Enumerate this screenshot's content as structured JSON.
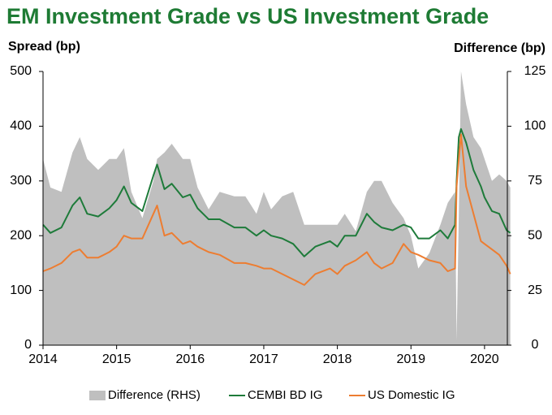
{
  "chart_data": {
    "type": "line",
    "title": "EM Investment Grade vs US Investment Grade",
    "ylabel": "Spread (bp)",
    "y2label": "Difference (bp)",
    "x": [
      2014.0,
      2014.1,
      2014.25,
      2014.4,
      2014.5,
      2014.6,
      2014.75,
      2014.9,
      2015.0,
      2015.1,
      2015.2,
      2015.35,
      2015.5,
      2015.55,
      2015.65,
      2015.75,
      2015.9,
      2016.0,
      2016.1,
      2016.25,
      2016.4,
      2016.6,
      2016.75,
      2016.9,
      2017.0,
      2017.1,
      2017.25,
      2017.4,
      2017.55,
      2017.7,
      2017.9,
      2018.0,
      2018.1,
      2018.25,
      2018.4,
      2018.5,
      2018.6,
      2018.75,
      2018.9,
      2019.0,
      2019.1,
      2019.25,
      2019.4,
      2019.5,
      2019.6,
      2019.62,
      2019.65,
      2019.68,
      2019.75,
      2019.85,
      2019.95,
      2020.0,
      2020.1,
      2020.2,
      2020.3,
      2020.35
    ],
    "series": [
      {
        "name": "Difference (RHS)",
        "color": "#bfbfbf",
        "axis": "y2",
        "kind": "area",
        "values": [
          85,
          72,
          70,
          88,
          95,
          85,
          80,
          85,
          85,
          90,
          70,
          58,
          75,
          85,
          88,
          92,
          85,
          85,
          72,
          62,
          70,
          68,
          68,
          60,
          70,
          62,
          68,
          70,
          55,
          55,
          55,
          55,
          60,
          52,
          70,
          75,
          75,
          65,
          58,
          50,
          35,
          42,
          55,
          65,
          70,
          2,
          60,
          125,
          110,
          95,
          90,
          85,
          75,
          78,
          75,
          72
        ]
      },
      {
        "name": "CEMBI BD IG",
        "color": "#1e7b3a",
        "kind": "line",
        "values": [
          220,
          205,
          215,
          255,
          270,
          240,
          235,
          250,
          265,
          290,
          260,
          245,
          310,
          330,
          285,
          295,
          270,
          275,
          250,
          230,
          230,
          215,
          215,
          200,
          210,
          200,
          195,
          185,
          162,
          180,
          190,
          180,
          200,
          200,
          240,
          225,
          215,
          210,
          220,
          215,
          195,
          195,
          210,
          195,
          220,
          300,
          380,
          395,
          370,
          320,
          290,
          270,
          245,
          240,
          210,
          205
        ]
      },
      {
        "name": "US Domestic IG",
        "color": "#ed7d31",
        "kind": "line",
        "values": [
          135,
          140,
          150,
          170,
          175,
          160,
          160,
          170,
          180,
          200,
          195,
          195,
          240,
          255,
          200,
          205,
          185,
          190,
          180,
          170,
          165,
          150,
          150,
          145,
          140,
          140,
          130,
          120,
          110,
          130,
          140,
          130,
          145,
          155,
          170,
          150,
          140,
          150,
          185,
          170,
          165,
          155,
          150,
          135,
          140,
          290,
          340,
          385,
          290,
          240,
          190,
          185,
          175,
          165,
          145,
          130
        ]
      }
    ],
    "xlim": [
      2014,
      2020.31
    ],
    "xticks": [
      2014,
      2015,
      2016,
      2017,
      2018,
      2019,
      2020
    ],
    "ylim": [
      0,
      500
    ],
    "yticks": [
      0,
      100,
      200,
      300,
      400,
      500
    ],
    "y2lim": [
      0,
      125
    ],
    "y2ticks": [
      0,
      25,
      50,
      75,
      100,
      125
    ],
    "legend": "bottom"
  }
}
